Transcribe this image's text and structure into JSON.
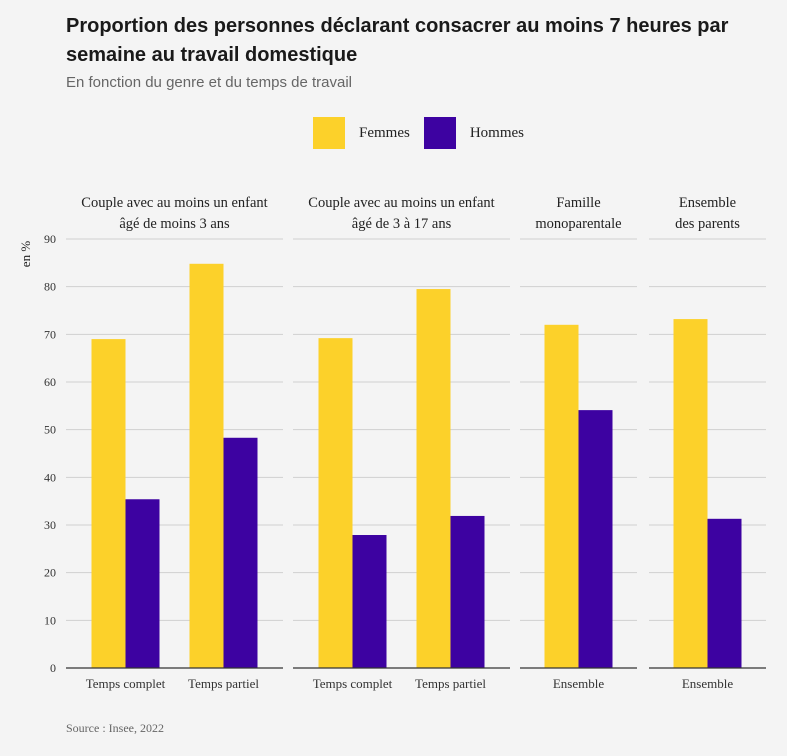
{
  "title": "Proportion des personnes déclarant consacrer au moins 7 heures par semaine au travail domestique",
  "subtitle": "En fonction du genre et du temps de travail",
  "source": "Source : Insee, 2022",
  "colors": {
    "femmes": "#fcd12a",
    "hommes": "#3d02a1"
  },
  "chart_data": {
    "type": "bar",
    "ylabel": "en %",
    "ylim": [
      0,
      90
    ],
    "yticks": [
      0,
      10,
      20,
      30,
      40,
      50,
      60,
      70,
      80,
      90
    ],
    "grid": true,
    "legend_placement": "top-center",
    "series": [
      {
        "name": "Femmes",
        "color": "#fcd12a"
      },
      {
        "name": "Hommes",
        "color": "#3d02a1"
      }
    ],
    "panels": [
      {
        "title": [
          "Couple avec au moins un enfant",
          "âgé de moins 3 ans"
        ],
        "categories": [
          "Temps complet",
          "Temps partiel"
        ],
        "femmes": [
          69,
          84.8
        ],
        "hommes": [
          35.4,
          48.3
        ]
      },
      {
        "title": [
          "Couple avec au moins un enfant",
          "âgé de 3 à 17 ans"
        ],
        "categories": [
          "Temps complet",
          "Temps partiel"
        ],
        "femmes": [
          69.2,
          79.5
        ],
        "hommes": [
          27.9,
          31.9
        ]
      },
      {
        "title": [
          "Famille",
          "monoparentale"
        ],
        "categories": [
          "Ensemble"
        ],
        "femmes": [
          72
        ],
        "hommes": [
          54.1
        ]
      },
      {
        "title": [
          "Ensemble",
          "des parents"
        ],
        "categories": [
          "Ensemble"
        ],
        "femmes": [
          73.2
        ],
        "hommes": [
          31.3
        ]
      }
    ]
  }
}
